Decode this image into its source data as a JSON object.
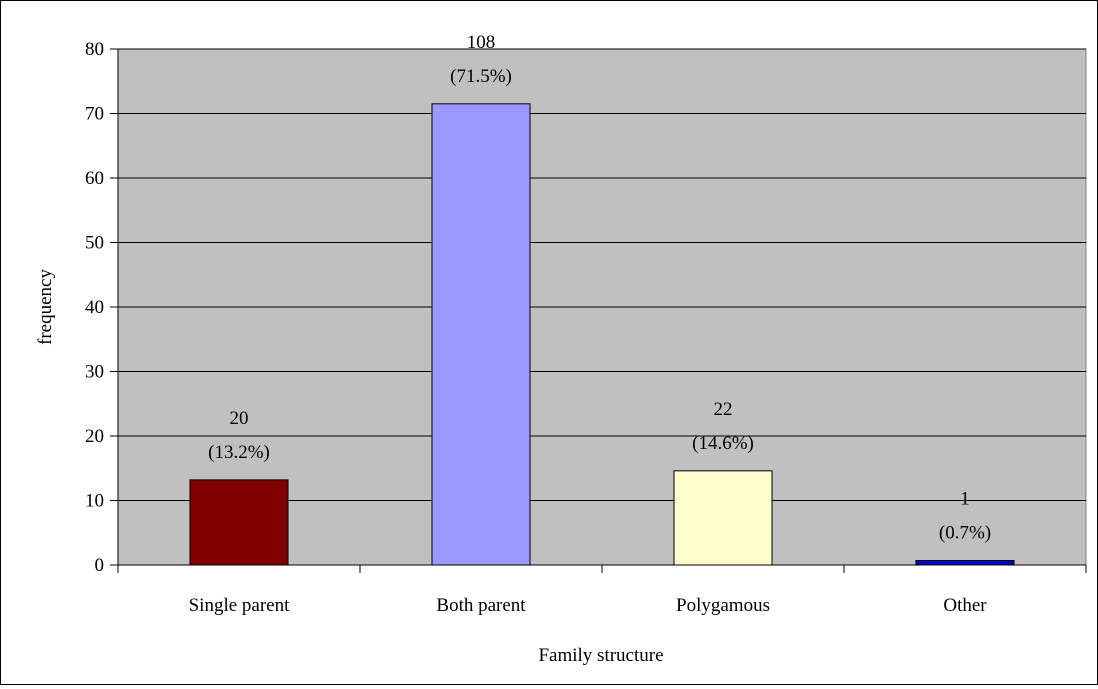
{
  "chart_data": {
    "type": "bar",
    "categories": [
      "Single parent",
      "Both parent",
      "Polygamous",
      "Other"
    ],
    "values": [
      13.2,
      71.5,
      14.6,
      0.7
    ],
    "data_labels": [
      {
        "count": "20",
        "percent": "(13.2%)"
      },
      {
        "count": "108",
        "percent": "(71.5%)"
      },
      {
        "count": "22",
        "percent": "(14.6%)"
      },
      {
        "count": "1",
        "percent": "(0.7%)"
      }
    ],
    "bar_colors": [
      "#800000",
      "#9999ff",
      "#ffffcc",
      "#0000cc"
    ],
    "xlabel": "Family structure",
    "ylabel": "frequency",
    "ylim": [
      0,
      80
    ],
    "yticks": [
      0,
      10,
      20,
      30,
      40,
      50,
      60,
      70,
      80
    ],
    "grid": "horizontal",
    "plot_background": "#c0c0c0",
    "legend": "none"
  }
}
